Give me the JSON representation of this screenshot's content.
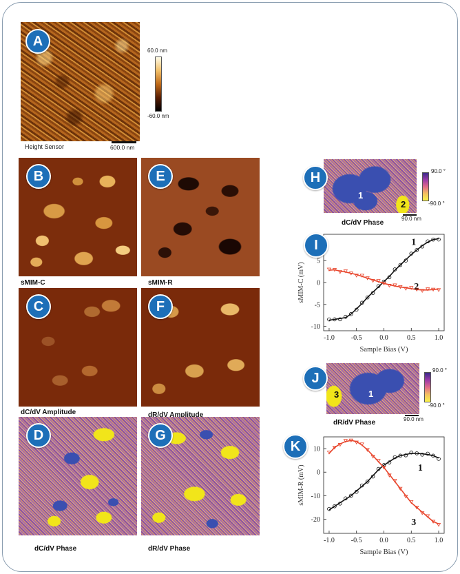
{
  "panels": {
    "A": {
      "badge": "A",
      "caption": "Height Sensor",
      "scale": "600.0 nm",
      "cbar_top": "60.0 nm",
      "cbar_bottom": "-60.0 nm"
    },
    "B": {
      "badge": "B",
      "caption": "sMIM-C"
    },
    "E": {
      "badge": "E",
      "caption": "sMIM-R"
    },
    "C": {
      "badge": "C",
      "caption": "dC/dV Amplitude"
    },
    "F": {
      "badge": "F",
      "caption": "dR/dV Amplitude"
    },
    "D": {
      "badge": "D",
      "caption": "dC/dV Phase"
    },
    "G": {
      "badge": "G",
      "caption": "dR/dV Phase"
    },
    "H": {
      "badge": "H",
      "caption": "dC/dV Phase",
      "scale": "90.0 nm",
      "cbar_top": "90.0 °",
      "cbar_bottom": "-90.0 °",
      "region1": "1",
      "region2": "2"
    },
    "J": {
      "badge": "J",
      "caption": "dR/dV Phase",
      "scale": "90.0 nm",
      "cbar_top": "90.0 °",
      "cbar_bottom": "-90.0 °",
      "region1": "1",
      "region3": "3"
    },
    "I": {
      "badge": "I"
    },
    "K": {
      "badge": "K"
    }
  },
  "colors": {
    "badge": "#1d6fb8",
    "series_black": "#111111",
    "series_red": "#e8452c",
    "phase_yellow": "#f1e51a",
    "phase_blue": "#3a4fb0"
  },
  "chart_data": [
    {
      "type": "scatter",
      "panel": "I",
      "xlabel": "Sample Bias (V)",
      "ylabel": "sMIM-C (mV)",
      "xlim": [
        -1.1,
        1.1
      ],
      "ylim": [
        -11,
        11
      ],
      "xticks": [
        "-1.0",
        "-0.5",
        "0.0",
        "0.5",
        "1.0"
      ],
      "yticks": [
        "10",
        "5",
        "0",
        "-5",
        "-10"
      ],
      "series": [
        {
          "name": "1",
          "color": "#111111",
          "x": [
            -1.0,
            -0.9,
            -0.8,
            -0.7,
            -0.6,
            -0.5,
            -0.4,
            -0.3,
            -0.2,
            -0.1,
            0.0,
            0.1,
            0.2,
            0.3,
            0.4,
            0.5,
            0.6,
            0.7,
            0.8,
            0.9,
            1.0
          ],
          "y": [
            -8.6,
            -8.4,
            -8.2,
            -8.0,
            -7.2,
            -6.0,
            -4.8,
            -3.4,
            -2.2,
            -1.0,
            0.2,
            1.4,
            2.8,
            4.0,
            5.2,
            6.4,
            7.4,
            8.4,
            9.2,
            9.8,
            10.0
          ]
        },
        {
          "name": "2",
          "color": "#e8452c",
          "x": [
            -1.0,
            -0.9,
            -0.8,
            -0.7,
            -0.6,
            -0.5,
            -0.4,
            -0.3,
            -0.2,
            -0.1,
            0.0,
            0.1,
            0.2,
            0.3,
            0.4,
            0.5,
            0.6,
            0.7,
            0.8,
            0.9,
            1.0
          ],
          "y": [
            2.8,
            2.9,
            2.6,
            2.4,
            2.1,
            1.8,
            1.4,
            1.0,
            0.6,
            0.2,
            -0.2,
            -0.5,
            -0.8,
            -1.0,
            -1.2,
            -1.4,
            -1.6,
            -1.7,
            -1.7,
            -1.6,
            -1.5
          ]
        }
      ]
    },
    {
      "type": "scatter",
      "panel": "K",
      "xlabel": "Sample Bias (V)",
      "ylabel": "sMIM-R (mV)",
      "xlim": [
        -1.1,
        1.1
      ],
      "ylim": [
        -26,
        15
      ],
      "xticks": [
        "-1.0",
        "-0.5",
        "0.0",
        "0.5",
        "1.0"
      ],
      "yticks": [
        "10",
        "0",
        "-10",
        "-20"
      ],
      "series": [
        {
          "name": "1",
          "color": "#111111",
          "x": [
            -1.0,
            -0.9,
            -0.8,
            -0.7,
            -0.6,
            -0.5,
            -0.4,
            -0.3,
            -0.2,
            -0.1,
            0.0,
            0.1,
            0.2,
            0.3,
            0.4,
            0.5,
            0.6,
            0.7,
            0.8,
            0.9,
            1.0
          ],
          "y": [
            -16,
            -14.5,
            -13,
            -11.5,
            -10,
            -8,
            -6,
            -4,
            -1.5,
            1,
            3,
            4.5,
            6,
            7,
            7.5,
            8,
            8,
            7.8,
            7.5,
            7,
            6
          ]
        },
        {
          "name": "3",
          "color": "#e8452c",
          "x": [
            -1.0,
            -0.9,
            -0.8,
            -0.7,
            -0.6,
            -0.5,
            -0.4,
            -0.3,
            -0.2,
            -0.1,
            0.0,
            0.1,
            0.2,
            0.3,
            0.4,
            0.5,
            0.6,
            0.7,
            0.8,
            0.9,
            1.0
          ],
          "y": [
            8,
            10.5,
            12,
            13,
            13.5,
            13,
            11.5,
            9.5,
            7,
            4.5,
            2,
            -1,
            -4,
            -7,
            -10,
            -13,
            -15,
            -17,
            -19,
            -21,
            -22
          ]
        }
      ]
    }
  ]
}
